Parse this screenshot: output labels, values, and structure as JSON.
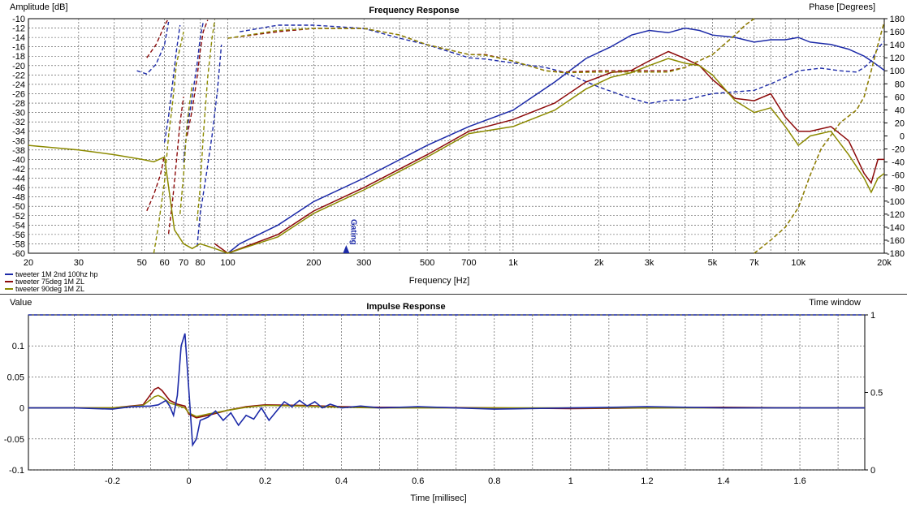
{
  "chart_data": [
    {
      "type": "line",
      "title": "Frequency Response",
      "ylabel_left": "Amplitude [dB]",
      "ylabel_right": "Phase [Degrees]",
      "xlabel": "Frequency [Hz]",
      "xscale": "log",
      "xlim": [
        20,
        20000
      ],
      "ylim_left": [
        -60,
        -10
      ],
      "ylim_right": [
        -180,
        180
      ],
      "grid": true,
      "legend_position": "bottom-left",
      "x_ticks": [
        20,
        30,
        50,
        60,
        70,
        80,
        100,
        200,
        300,
        500,
        700,
        1000,
        2000,
        3000,
        5000,
        7000,
        10000,
        20000
      ],
      "x_tick_labels": [
        "20",
        "30",
        "50",
        "60",
        "70",
        "80",
        "100",
        "200",
        "300",
        "500",
        "700",
        "1k",
        "2k",
        "3k",
        "5k",
        "7k",
        "10k",
        "20k"
      ],
      "y_ticks_left": [
        -10,
        -12,
        -14,
        -16,
        -18,
        -20,
        -22,
        -24,
        -26,
        -28,
        -30,
        -32,
        -34,
        -36,
        -38,
        -40,
        -42,
        -44,
        -46,
        -48,
        -50,
        -52,
        -54,
        -56,
        -58,
        -60
      ],
      "y_ticks_right": [
        180,
        160,
        140,
        120,
        100,
        80,
        60,
        40,
        20,
        0,
        -20,
        -40,
        -60,
        -80,
        -100,
        -120,
        -140,
        -160,
        -180
      ],
      "marker": {
        "label": "Gating",
        "x": 260
      },
      "series": [
        {
          "name": "tweeter 1M 2nd 100hz hp",
          "color": "#1c2aa8",
          "magnitude": {
            "x": [
              100,
              110,
              150,
              200,
              300,
              500,
              700,
              1000,
              1400,
              1800,
              2200,
              2600,
              3000,
              3500,
              4000,
              4500,
              5000,
              6000,
              7000,
              8000,
              9000,
              10000,
              11000,
              13000,
              15000,
              17000,
              18000,
              19000,
              20000
            ],
            "y": [
              -60,
              -58,
              -54,
              -49,
              -44,
              -37,
              -33,
              -29.5,
              -23.5,
              -18.5,
              -16,
              -13.5,
              -12.5,
              -13,
              -12,
              -12.5,
              -13.5,
              -14,
              -15,
              -14.5,
              -14.5,
              -14,
              -15,
              -15.5,
              -16.5,
              -18,
              -19,
              -20,
              -21
            ]
          },
          "phase": [
            {
              "x": [
                48,
                52,
                56,
                60,
                62
              ],
              "y": [
                100,
                95,
                110,
                140,
                175
              ]
            },
            {
              "x": [
                60,
                62,
                64,
                66,
                68
              ],
              "y": [
                -10,
                30,
                80,
                130,
                170
              ]
            },
            {
              "x": [
                70,
                72,
                75,
                78,
                80,
                82
              ],
              "y": [
                -40,
                10,
                60,
                110,
                150,
                175
              ]
            },
            {
              "x": [
                78,
                80,
                84,
                88,
                92,
                95
              ],
              "y": [
                -170,
                -120,
                -60,
                0,
                70,
                140
              ]
            },
            {
              "x": [
                110,
                150,
                200,
                300,
                400,
                500,
                700,
                800,
                1000,
                1300,
                1500,
                2000,
                2500,
                3000,
                3500,
                4000,
                5000,
                7000,
                8000,
                9000,
                10000,
                12000,
                14000,
                16000,
                17000,
                18000,
                18500,
                19000,
                19500,
                20000
              ],
              "y": [
                160,
                170,
                170,
                165,
                150,
                140,
                120,
                118,
                112,
                105,
                98,
                75,
                60,
                50,
                55,
                55,
                65,
                70,
                80,
                90,
                100,
                104,
                100,
                98,
                105,
                115,
                125,
                135,
                140,
                145
              ]
            }
          ]
        },
        {
          "name": "tweeter 75deg 1M ZL",
          "color": "#8c0a0a",
          "magnitude": {
            "x": [
              90,
              100,
              150,
              200,
              300,
              500,
              700,
              1000,
              1400,
              1800,
              2200,
              2600,
              3000,
              3500,
              4000,
              4500,
              5000,
              6000,
              7000,
              8000,
              9000,
              10000,
              11000,
              13000,
              15000,
              17000,
              18000,
              19000,
              20000
            ],
            "y": [
              -58,
              -60,
              -56,
              -51,
              -46,
              -39,
              -34,
              -31.5,
              -28,
              -23.5,
              -21.5,
              -21,
              -19,
              -17,
              -18.5,
              -20,
              -23,
              -27,
              -27.5,
              -26,
              -31,
              -34,
              -34,
              -33,
              -36,
              -43,
              -45,
              -40,
              -40
            ]
          },
          "phase": [
            {
              "x": [
                52,
                56,
                58,
                60,
                62
              ],
              "y": [
                120,
                140,
                155,
                170,
                180
              ]
            },
            {
              "x": [
                52,
                55,
                58,
                60
              ],
              "y": [
                -115,
                -90,
                -60,
                -30
              ]
            },
            {
              "x": [
                62,
                64,
                66,
                68,
                70
              ],
              "y": [
                -150,
                -100,
                -40,
                20,
                60
              ]
            },
            {
              "x": [
                72,
                75,
                78,
                80,
                82,
                85
              ],
              "y": [
                0,
                40,
                90,
                130,
                160,
                178
              ]
            },
            {
              "x": [
                100,
                150,
                200,
                300,
                400,
                500,
                700,
                800,
                1000,
                1300,
                1500,
                2000,
                2500,
                3000,
                3500,
                4000,
                5000,
                6000,
                6500,
                7000
              ],
              "y": [
                150,
                160,
                165,
                165,
                155,
                140,
                125,
                125,
                115,
                100,
                98,
                100,
                100,
                100,
                100,
                105,
                125,
                155,
                170,
                180
              ]
            },
            {
              "x": [
                7000,
                8000,
                9000,
                10000,
                11000,
                12000,
                14000,
                16000,
                17000,
                18000,
                19000,
                20000
              ],
              "y": [
                -180,
                -160,
                -140,
                -110,
                -60,
                -20,
                20,
                40,
                60,
                100,
                140,
                175
              ]
            }
          ]
        },
        {
          "name": "tweeter 90deg 1M ZL",
          "color": "#8c8a00",
          "magnitude": {
            "x": [
              20,
              30,
              40,
              50,
              55,
              60,
              65,
              70,
              75,
              80,
              90,
              100,
              150,
              200,
              300,
              500,
              700,
              1000,
              1400,
              1800,
              2200,
              2600,
              3000,
              3500,
              4000,
              4500,
              5000,
              6000,
              7000,
              8000,
              9000,
              10000,
              11000,
              13000,
              15000,
              17000,
              18000,
              19000,
              20000
            ],
            "y": [
              -37,
              -38,
              -39,
              -40,
              -40.5,
              -39.5,
              -55,
              -58,
              -59,
              -58,
              -59,
              -60,
              -56.5,
              -51.5,
              -46.5,
              -39.5,
              -34.5,
              -33,
              -29.5,
              -25,
              -22.5,
              -21.5,
              -20,
              -18.5,
              -19.5,
              -20,
              -22,
              -27.5,
              -30,
              -29,
              -33,
              -37,
              -35,
              -34,
              -39,
              -44,
              -47,
              -44,
              -43
            ]
          },
          "phase": [
            {
              "x": [
                55,
                57,
                60,
                62,
                64,
                66,
                70
              ],
              "y": [
                -180,
                -140,
                -70,
                0,
                50,
                110,
                160
              ]
            },
            {
              "x": [
                68,
                70,
                72,
                75
              ],
              "y": [
                -120,
                -60,
                20,
                80
              ]
            },
            {
              "x": [
                78,
                80,
                82,
                85,
                88,
                90
              ],
              "y": [
                -130,
                -80,
                0,
                90,
                150,
                178
              ]
            },
            {
              "x": [
                100,
                150,
                200,
                300,
                400,
                500,
                700,
                800,
                1000,
                1300,
                1500,
                2000,
                2500,
                3000,
                3500,
                4000,
                5000,
                6000,
                6500,
                7000
              ],
              "y": [
                150,
                162,
                165,
                165,
                155,
                140,
                125,
                124,
                115,
                100,
                97,
                98,
                98,
                98,
                98,
                105,
                125,
                155,
                170,
                180
              ]
            },
            {
              "x": [
                7000,
                8000,
                9000,
                10000,
                11000,
                12000,
                14000,
                16000,
                17000,
                18000,
                19000,
                20000
              ],
              "y": [
                -180,
                -160,
                -140,
                -110,
                -60,
                -20,
                20,
                40,
                60,
                100,
                140,
                175
              ]
            }
          ]
        }
      ]
    },
    {
      "type": "line",
      "title": "Impulse Response",
      "ylabel_left": "Value",
      "ylabel_right": "Time window",
      "xlabel": "Time [millisec]",
      "xlim": [
        -0.42,
        1.77
      ],
      "ylim_left": [
        -0.1,
        0.15
      ],
      "ylim_right": [
        0,
        1
      ],
      "grid": true,
      "x_ticks": [
        -0.2,
        0,
        0.2,
        0.4,
        0.6,
        0.8,
        1,
        1.2,
        1.4,
        1.6
      ],
      "x_tick_labels": [
        "-0.2",
        "0",
        "0.2",
        "0.4",
        "0.6",
        "0.8",
        "1",
        "1.2",
        "1.4",
        "1.6"
      ],
      "y_ticks_left": [
        0.1,
        0.05,
        0,
        -0.05,
        -0.1
      ],
      "y_tick_labels_left": [
        "0.1",
        "0.05",
        "0",
        "-0.05",
        "-0.1"
      ],
      "y_ticks_right": [
        1,
        0.5,
        0
      ],
      "y_tick_labels_right": [
        "1",
        "0.5",
        "0"
      ],
      "time_window": 1,
      "series": [
        {
          "name": "tweeter 1M 2nd 100hz hp",
          "color": "#1c2aa8",
          "t": [
            -0.42,
            -0.3,
            -0.2,
            -0.15,
            -0.1,
            -0.08,
            -0.06,
            -0.05,
            -0.04,
            -0.03,
            -0.02,
            -0.01,
            0,
            0.01,
            0.02,
            0.03,
            0.05,
            0.07,
            0.09,
            0.11,
            0.13,
            0.15,
            0.17,
            0.19,
            0.21,
            0.23,
            0.25,
            0.27,
            0.29,
            0.31,
            0.33,
            0.35,
            0.37,
            0.4,
            0.45,
            0.5,
            0.6,
            0.8,
            1.0,
            1.2,
            1.4,
            1.6,
            1.77
          ],
          "v": [
            0,
            0,
            -0.002,
            0.002,
            0.003,
            0.005,
            0.012,
            0.003,
            -0.012,
            0.02,
            0.1,
            0.12,
            0.03,
            -0.06,
            -0.05,
            -0.02,
            -0.015,
            -0.005,
            -0.02,
            -0.008,
            -0.028,
            -0.012,
            -0.018,
            0.0,
            -0.02,
            -0.005,
            0.01,
            0.002,
            0.012,
            0.003,
            0.01,
            0.0,
            0.006,
            0.0,
            0.003,
            0.0,
            0.002,
            -0.002,
            0.0,
            0.002,
            0.0,
            0.0,
            0.0
          ]
        },
        {
          "name": "tweeter 75deg 1M ZL",
          "color": "#8c0a0a",
          "t": [
            -0.42,
            -0.2,
            -0.12,
            -0.09,
            -0.08,
            -0.07,
            -0.05,
            -0.03,
            -0.01,
            0.0,
            0.02,
            0.05,
            0.1,
            0.15,
            0.2,
            0.3,
            0.4,
            0.5,
            0.6,
            0.8,
            1.0,
            1.2,
            1.4,
            1.6,
            1.77
          ],
          "v": [
            0,
            0,
            0.005,
            0.03,
            0.033,
            0.028,
            0.012,
            0.006,
            0.003,
            -0.01,
            -0.016,
            -0.012,
            -0.004,
            0.002,
            0.005,
            0.004,
            0.002,
            0.001,
            0.001,
            0.0,
            -0.001,
            0.0,
            0.001,
            0.0,
            0.0
          ]
        },
        {
          "name": "tweeter 90deg 1M ZL",
          "color": "#8c8a00",
          "t": [
            -0.42,
            -0.2,
            -0.12,
            -0.09,
            -0.08,
            -0.07,
            -0.05,
            -0.03,
            -0.01,
            0.0,
            0.02,
            0.05,
            0.1,
            0.15,
            0.2,
            0.3,
            0.4,
            0.5,
            0.6,
            0.8,
            1.0,
            1.2,
            1.4,
            1.6,
            1.77
          ],
          "v": [
            0,
            0,
            0.004,
            0.018,
            0.02,
            0.017,
            0.008,
            0.004,
            0.0,
            -0.008,
            -0.014,
            -0.01,
            -0.004,
            0.001,
            0.004,
            0.003,
            0.001,
            0.0,
            0.0,
            0.0,
            0.0,
            0.0,
            0.0,
            0.0,
            0.0
          ]
        }
      ]
    }
  ]
}
